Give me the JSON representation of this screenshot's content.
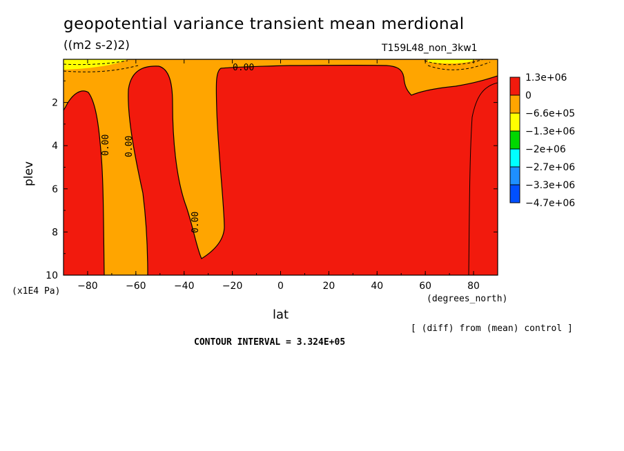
{
  "title": "geopotential variance transient mean merdional",
  "units": "((m2 s-2)2)",
  "run_label": "T159L48_non_3kw1",
  "diff_note": "[ (diff) from (mean) control ]",
  "contour_interval": "CONTOUR INTERVAL = 3.324E+05",
  "chart_data": {
    "type": "contour",
    "xlabel": "lat",
    "x_unit_label": "(degrees_north)",
    "ylabel": "plev",
    "y_unit_label": "(x1E4 Pa)",
    "xlim": [
      -90,
      90
    ],
    "ylim": [
      10,
      0
    ],
    "x_ticks": [
      -80,
      -60,
      -40,
      -20,
      0,
      20,
      40,
      60,
      80
    ],
    "y_ticks": [
      2,
      4,
      6,
      8,
      10
    ],
    "contour_labels": [
      "0.00",
      "0.00",
      "0.00",
      "0.00"
    ],
    "legend": {
      "placement": "right",
      "levels": [
        "1.3e+06",
        "0",
        "-6.6e+05",
        "-1.3e+06",
        "-2e+06",
        "-2.7e+06",
        "-3.3e+06",
        "-4.7e+06"
      ],
      "colors": [
        "#f21a0d",
        "#ffa500",
        "#ffff00",
        "#00d700",
        "#00ffff",
        "#1e90ff",
        "#0050ff"
      ]
    },
    "regions": [
      {
        "value_range": ">0",
        "color": "#f21a0d",
        "description_lat": [
          -90,
          90
        ]
      },
      {
        "value_range": "-6.6e+05 to 0",
        "color": "#ffa500"
      }
    ]
  }
}
